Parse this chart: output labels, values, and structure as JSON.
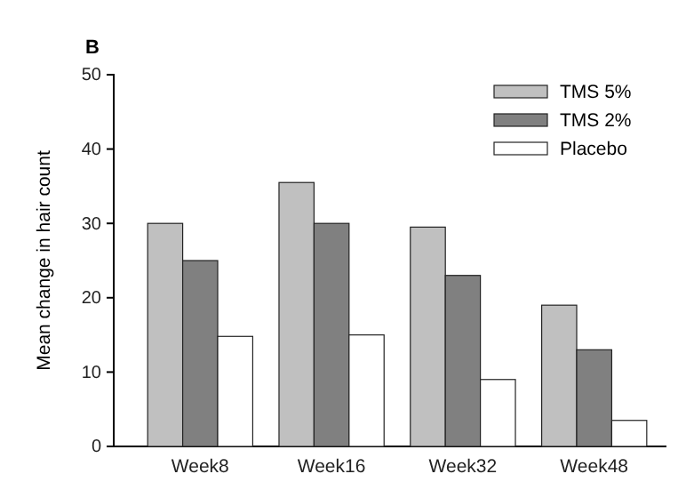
{
  "chart_data": {
    "type": "bar",
    "title": "B",
    "ylabel": "Mean change in hair count",
    "categories": [
      "Week8",
      "Week16",
      "Week32",
      "Week48"
    ],
    "series": [
      {
        "name": "TMS 5%",
        "color": "#c0c0c0",
        "values": [
          30,
          35.5,
          29.5,
          19
        ]
      },
      {
        "name": "TMS 2%",
        "color": "#808080",
        "values": [
          25,
          30,
          23,
          13
        ]
      },
      {
        "name": "Placebo",
        "color": "#ffffff",
        "values": [
          14.8,
          15,
          9,
          3.5
        ]
      }
    ],
    "ylim": [
      0,
      50
    ],
    "yticks": [
      0,
      10,
      20,
      30,
      40,
      50
    ],
    "legend": "top right"
  }
}
